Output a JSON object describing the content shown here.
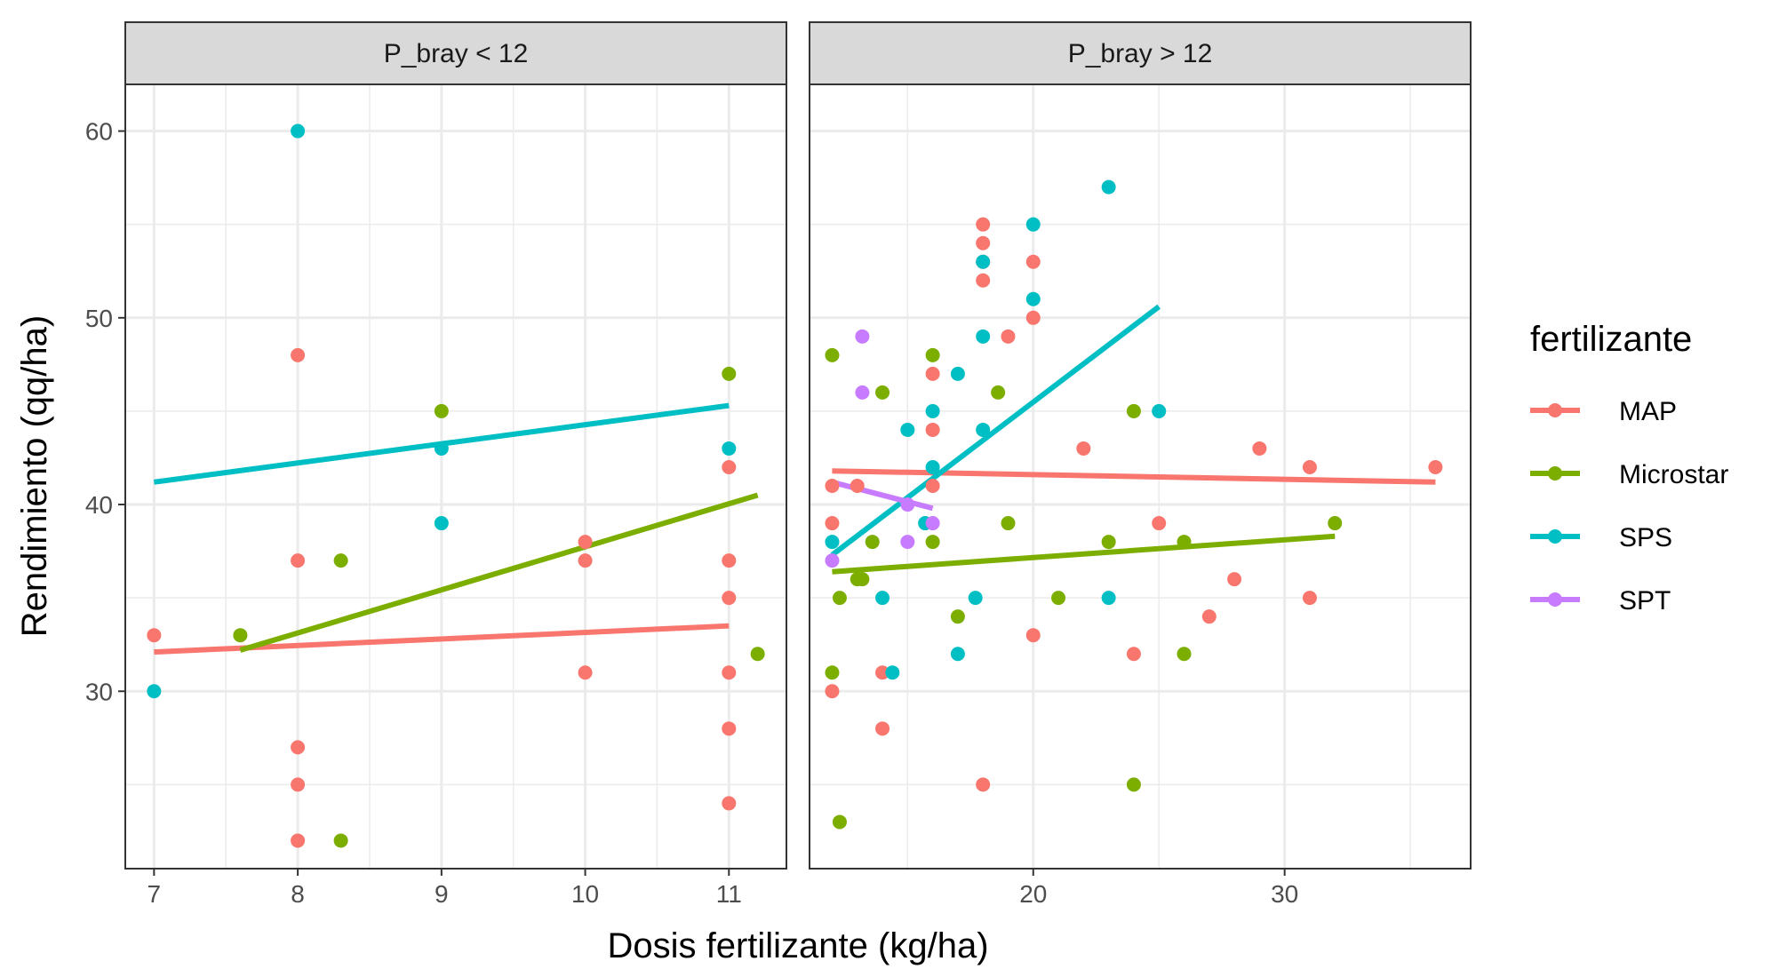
{
  "chart_data": {
    "type": "scatter",
    "xlabel": "Dosis  fertilizante (kg/ha)",
    "ylabel": "Rendimiento (qq/ha)",
    "legend_title": "fertilizante",
    "legend_position": "right",
    "grid": true,
    "series": [
      {
        "name": "MAP",
        "color": "#F8766D"
      },
      {
        "name": "Microstar",
        "color": "#7CAE00"
      },
      {
        "name": "SPS",
        "color": "#00BFC4"
      },
      {
        "name": "SPT",
        "color": "#C77CFF"
      }
    ],
    "panels": [
      {
        "strip": "P_bray < 12",
        "xlim": [
          6.8,
          11.4
        ],
        "ylim": [
          20.5,
          62.5
        ],
        "x_ticks": [
          7,
          8,
          9,
          10,
          11
        ],
        "x_tick_labels": [
          "7",
          "8",
          "9",
          "10",
          "11"
        ],
        "y_ticks": [
          30,
          40,
          50,
          60
        ],
        "y_tick_labels": [
          "30",
          "40",
          "50",
          "60"
        ],
        "points": {
          "MAP": [
            [
              7,
              33
            ],
            [
              8,
              48
            ],
            [
              8,
              37
            ],
            [
              8,
              27
            ],
            [
              8,
              25
            ],
            [
              8,
              22
            ],
            [
              10,
              38
            ],
            [
              10,
              37
            ],
            [
              10,
              31
            ],
            [
              11,
              42
            ],
            [
              11,
              37
            ],
            [
              11,
              35
            ],
            [
              11,
              31
            ],
            [
              11,
              28
            ],
            [
              11,
              24
            ]
          ],
          "Microstar": [
            [
              7.6,
              33
            ],
            [
              8.3,
              37
            ],
            [
              8.3,
              22
            ],
            [
              9,
              45
            ],
            [
              11,
              47
            ],
            [
              11.2,
              32
            ]
          ],
          "SPS": [
            [
              7,
              30
            ],
            [
              8,
              60
            ],
            [
              9,
              43
            ],
            [
              9,
              39
            ],
            [
              11,
              43
            ]
          ],
          "SPT": []
        },
        "fits": {
          "MAP": [
            [
              7,
              32.1
            ],
            [
              11,
              33.5
            ]
          ],
          "Microstar": [
            [
              7.6,
              32.2
            ],
            [
              11.2,
              40.5
            ]
          ],
          "SPS": [
            [
              7,
              41.2
            ],
            [
              11,
              45.3
            ]
          ]
        }
      },
      {
        "strip": "P_bray > 12",
        "xlim": [
          11.1,
          37.4
        ],
        "ylim": [
          20.5,
          62.5
        ],
        "x_ticks": [
          20,
          30
        ],
        "x_tick_labels": [
          "20",
          "30"
        ],
        "y_ticks": [
          30,
          40,
          50,
          60
        ],
        "y_tick_labels": [
          "30",
          "40",
          "50",
          "60"
        ],
        "points": {
          "MAP": [
            [
              12,
              41
            ],
            [
              12,
              39
            ],
            [
              12,
              30
            ],
            [
              13,
              41
            ],
            [
              14,
              31
            ],
            [
              14,
              28
            ],
            [
              16,
              47
            ],
            [
              16,
              44
            ],
            [
              16,
              41
            ],
            [
              18,
              55
            ],
            [
              18,
              54
            ],
            [
              18,
              53
            ],
            [
              18,
              52
            ],
            [
              18,
              25
            ],
            [
              19,
              49
            ],
            [
              20,
              53
            ],
            [
              20,
              50
            ],
            [
              20,
              33
            ],
            [
              22,
              43
            ],
            [
              24,
              32
            ],
            [
              25,
              39
            ],
            [
              27,
              34
            ],
            [
              28,
              36
            ],
            [
              29,
              43
            ],
            [
              31,
              42
            ],
            [
              31,
              35
            ],
            [
              36,
              42
            ]
          ],
          "Microstar": [
            [
              12,
              48
            ],
            [
              12,
              31
            ],
            [
              12.3,
              35
            ],
            [
              12.3,
              23
            ],
            [
              13,
              36
            ],
            [
              13.2,
              36
            ],
            [
              13.6,
              38
            ],
            [
              14,
              46
            ],
            [
              16,
              48
            ],
            [
              16,
              38
            ],
            [
              17,
              34
            ],
            [
              18.6,
              46
            ],
            [
              19,
              39
            ],
            [
              21,
              35
            ],
            [
              23,
              38
            ],
            [
              24,
              45
            ],
            [
              24,
              25
            ],
            [
              26,
              38
            ],
            [
              26,
              32
            ],
            [
              32,
              39
            ]
          ],
          "SPS": [
            [
              12,
              38
            ],
            [
              14,
              35
            ],
            [
              14.4,
              31
            ],
            [
              15,
              44
            ],
            [
              15.7,
              39
            ],
            [
              16,
              45
            ],
            [
              16,
              42
            ],
            [
              17,
              47
            ],
            [
              17,
              32
            ],
            [
              17.7,
              35
            ],
            [
              18,
              53
            ],
            [
              18,
              49
            ],
            [
              18,
              44
            ],
            [
              20,
              55
            ],
            [
              20,
              51
            ],
            [
              23,
              57
            ],
            [
              23,
              35
            ],
            [
              25,
              45
            ]
          ],
          "SPT": [
            [
              12,
              37
            ],
            [
              13.2,
              49
            ],
            [
              13.2,
              46
            ],
            [
              15,
              38
            ],
            [
              15,
              40
            ],
            [
              16,
              39
            ]
          ]
        },
        "fits": {
          "MAP": [
            [
              12,
              41.8
            ],
            [
              36,
              41.2
            ]
          ],
          "Microstar": [
            [
              12,
              36.4
            ],
            [
              32,
              38.3
            ]
          ],
          "SPS": [
            [
              12,
              37.3
            ],
            [
              25,
              50.6
            ]
          ],
          "SPT": [
            [
              12,
              41.2
            ],
            [
              16,
              39.8
            ]
          ]
        }
      }
    ]
  }
}
